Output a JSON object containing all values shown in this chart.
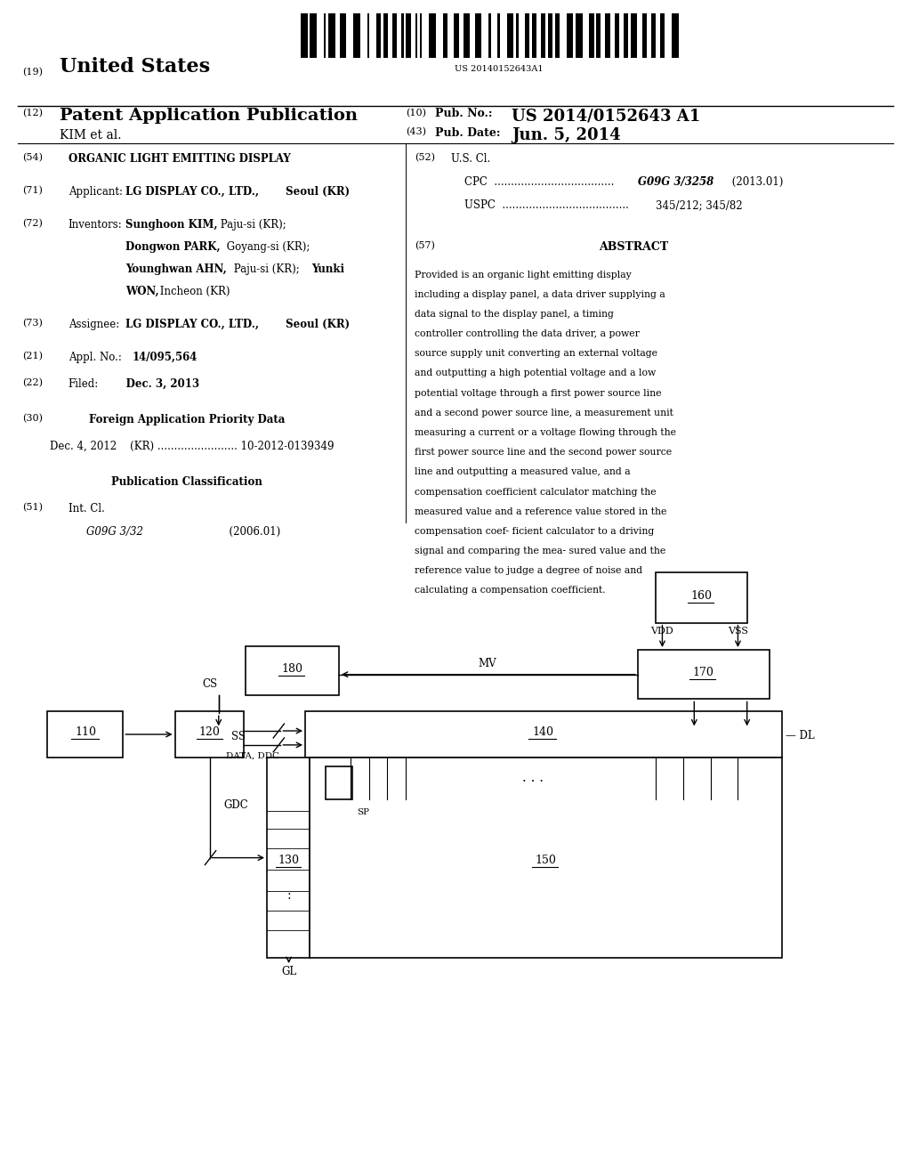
{
  "bg_color": "#ffffff",
  "barcode_text": "US 20140152643A1",
  "patent_header": {
    "num19": "(19)",
    "title19": "United States",
    "num12": "(12)",
    "title12": "Patent Application Publication",
    "authors": "KIM et al.",
    "num10": "(10)",
    "pubno_label": "Pub. No.:",
    "pubno_val": "US 2014/0152643 A1",
    "num43": "(43)",
    "pubdate_label": "Pub. Date:",
    "pubdate_val": "Jun. 5, 2014"
  },
  "abstract_title": "ABSTRACT",
  "abstract_text": "Provided is an organic light emitting display including a display panel, a data driver supplying a data signal to the display panel, a timing controller controlling the data driver, a power source supply unit converting an external voltage and outputting a high potential voltage and a low potential voltage through a first power source line and a second power source line, a measurement unit measuring a current or a voltage flowing through the first power source line and the second power source line and outputting a measured value, and a compensation coefficient calculator matching the measured value and a reference value stored in the compensation coef- ficient calculator to a driving signal and comparing the mea- sured value and the reference value to judge a degree of noise and calculating a compensation coefficient."
}
